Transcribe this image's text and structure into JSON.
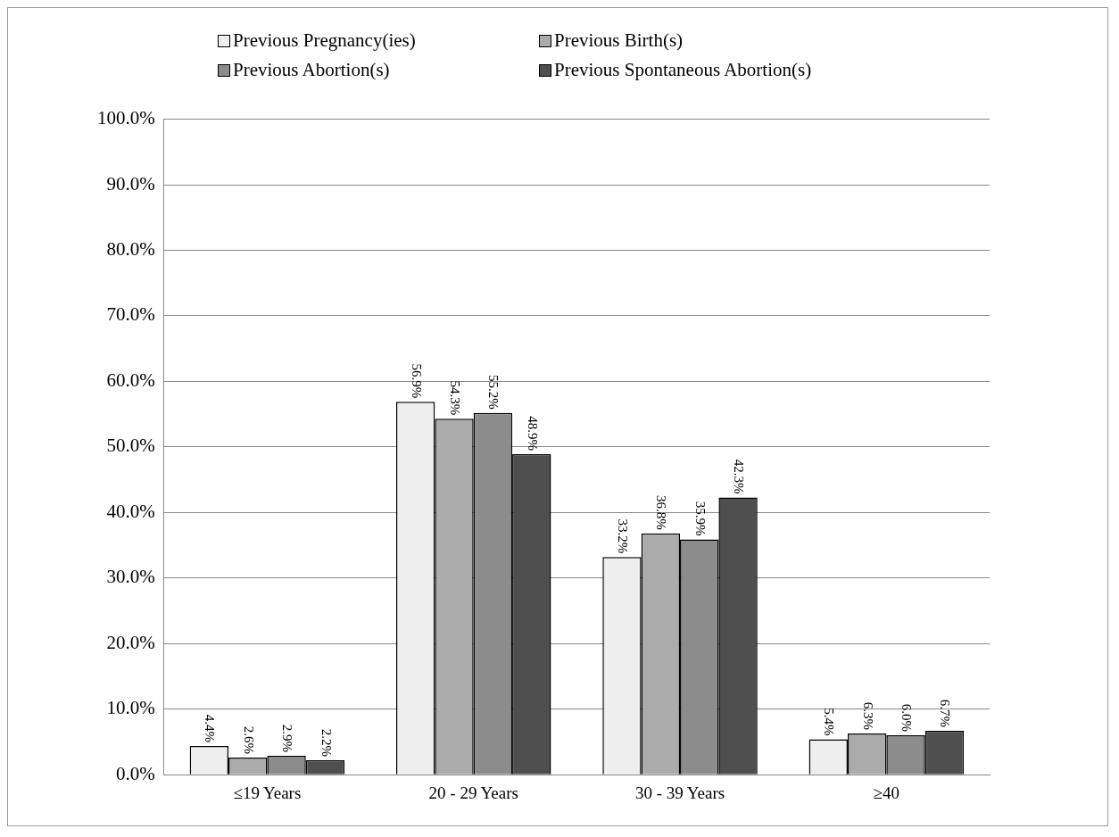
{
  "chart_data": {
    "type": "bar",
    "categories": [
      "≤19 Years",
      "20 - 29 Years",
      "30 - 39 Years",
      "≥40"
    ],
    "series": [
      {
        "name": "Previous Pregnancy(ies)",
        "color": "#eeeeee",
        "values": [
          4.4,
          56.9,
          33.2,
          5.4
        ]
      },
      {
        "name": "Previous Birth(s)",
        "color": "#ababab",
        "values": [
          2.6,
          54.3,
          36.8,
          6.3
        ]
      },
      {
        "name": "Previous Abortion(s)",
        "color": "#8c8c8c",
        "values": [
          2.9,
          55.2,
          35.9,
          6.0
        ]
      },
      {
        "name": "Previous Spontaneous Abortion(s)",
        "color": "#4f4f4f",
        "values": [
          2.2,
          48.9,
          42.3,
          6.7
        ]
      }
    ],
    "ylim": [
      0,
      100
    ],
    "yticks": [
      {
        "value": 0,
        "label": "0.0%"
      },
      {
        "value": 10,
        "label": "10.0%"
      },
      {
        "value": 20,
        "label": "20.0%"
      },
      {
        "value": 30,
        "label": "30.0%"
      },
      {
        "value": 40,
        "label": "40.0%"
      },
      {
        "value": 50,
        "label": "50.0%"
      },
      {
        "value": 60,
        "label": "60.0%"
      },
      {
        "value": 70,
        "label": "70.0%"
      },
      {
        "value": 80,
        "label": "80.0%"
      },
      {
        "value": 90,
        "label": "90.0%"
      },
      {
        "value": 100,
        "label": "100.0%"
      }
    ],
    "grid": "y",
    "legend": "top",
    "value_labels": [
      [
        "4.4%",
        "56.9%",
        "33.2%",
        "5.4%"
      ],
      [
        "2.6%",
        "54.3%",
        "36.8%",
        "6.3%"
      ],
      [
        "2.9%",
        "55.2%",
        "35.9%",
        "6.0%"
      ],
      [
        "2.2%",
        "48.9%",
        "42.3%",
        "6.7%"
      ]
    ]
  }
}
